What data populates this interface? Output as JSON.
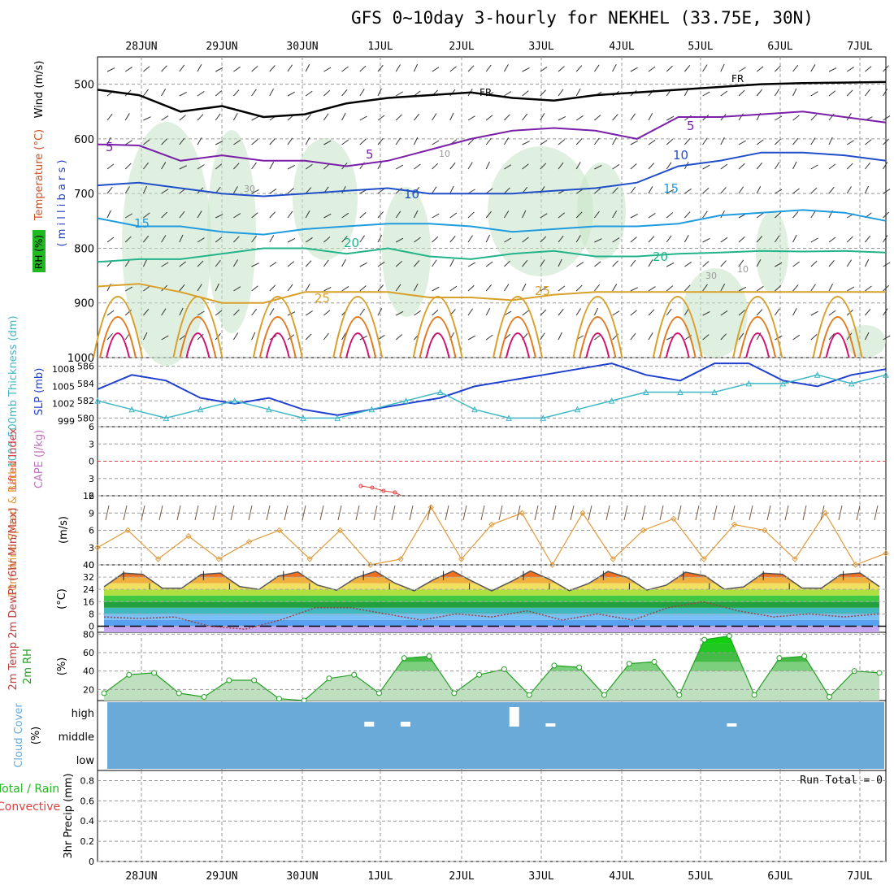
{
  "title": "GFS 0~10day 3-hourly for NEKHEL (33.75E, 30N)",
  "dates": [
    "28JUN",
    "29JUN",
    "30JUN",
    "1JUL",
    "2JUL",
    "3JUL",
    "4JUL",
    "5JUL",
    "6JUL",
    "7JUL"
  ],
  "colors": {
    "temp5": "#7a1fa8",
    "temp10": "#1f4fc8",
    "temp15": "#1f9be0",
    "temp20": "#22b38a",
    "temp25": "#d8a02a",
    "temp30": "#e07a20",
    "temp35": "#d01070",
    "fr": "#000000",
    "rh": "#c7e3c7",
    "slp": "#1f3fcf",
    "thick": "#3fb7c7",
    "wind10": "#e09a3a",
    "cloud": "#6aaad8",
    "rh2m": "#22a022"
  },
  "panels": {
    "upper": {
      "ylabel_wind": "Wind (m/s)",
      "ylabel_temp": "Temperature (°C)",
      "ylabel_rh": "RH (%)",
      "ylabel_units": "( m i l l i b a r s )",
      "yticks": [
        "500",
        "600",
        "700",
        "800",
        "900",
        "1000"
      ],
      "contour_labels": {
        "fr": "FR",
        "c5": "5",
        "c10": "10",
        "c15": "15",
        "c20": "20",
        "c25": "25",
        "rh10": "10",
        "rh30": "30"
      }
    },
    "slp": {
      "ylabel_thick": "1000-500mb Thickness (dm)",
      "ylabel_slp": "SLP (mb)",
      "left_ticks": [
        "586",
        "584",
        "582",
        "580"
      ],
      "right_ticks": [
        "1008",
        "1005",
        "1002",
        "999"
      ]
    },
    "cape": {
      "ylabel_li": "Lifted Index",
      "ylabel_cape": "CAPE (J/kg)",
      "yticks": [
        "-6",
        "-3",
        "0",
        "3",
        "6"
      ]
    },
    "wind10": {
      "ylabel": "10m Wind Speed & Barbs",
      "ylabel_units": "(m/s)",
      "yticks": [
        "12",
        "9",
        "6",
        "3",
        "0"
      ]
    },
    "temp2m": {
      "ylabel": "2m Temp 2m DewPt (6hr Min/Max)",
      "ylabel_units": "(°C)",
      "yticks": [
        "40",
        "32",
        "24",
        "16",
        "8",
        "0"
      ]
    },
    "rh2m": {
      "ylabel": "2m RH",
      "ylabel_units": "(%)",
      "yticks": [
        "80",
        "60",
        "40",
        "20"
      ]
    },
    "cloud": {
      "ylabel": "Cloud Cover",
      "ylabel_units": "(%)",
      "levels": [
        "high",
        "middle",
        "low"
      ]
    },
    "precip": {
      "ylabel_a": "Total / Rain",
      "ylabel_b": "Convective",
      "ylabel_units": "3hr Precip (mm)",
      "yticks": [
        "0.8",
        "0.6",
        "0.4",
        "0.2",
        "0"
      ],
      "run_total": "Run Total = 0"
    }
  },
  "chart_data": {
    "type": "line",
    "x_dates": [
      "28JUN",
      "29JUN",
      "30JUN",
      "1JUL",
      "2JUL",
      "3JUL",
      "4JUL",
      "5JUL",
      "6JUL",
      "7JUL"
    ],
    "upper_isotherms_mb": {
      "FR": [
        510,
        520,
        550,
        540,
        560,
        555,
        535,
        525,
        520,
        515,
        525,
        530,
        520,
        515,
        510,
        505,
        500,
        498,
        497,
        496
      ],
      "5C": [
        610,
        612,
        640,
        630,
        640,
        640,
        650,
        640,
        620,
        600,
        585,
        580,
        585,
        600,
        560,
        560,
        555,
        550,
        560,
        570
      ],
      "10C": [
        685,
        680,
        690,
        700,
        705,
        700,
        695,
        690,
        700,
        700,
        700,
        695,
        690,
        680,
        650,
        640,
        625,
        625,
        630,
        640
      ],
      "15C": [
        745,
        760,
        760,
        770,
        775,
        765,
        760,
        755,
        755,
        760,
        770,
        765,
        760,
        760,
        755,
        740,
        735,
        730,
        735,
        750
      ],
      "20C": [
        825,
        820,
        820,
        810,
        800,
        800,
        810,
        800,
        815,
        820,
        810,
        805,
        815,
        815,
        810,
        808,
        805,
        806,
        805,
        808
      ],
      "25C": [
        870,
        865,
        880,
        900,
        900,
        880,
        880,
        880,
        890,
        890,
        895,
        885,
        880,
        880,
        880,
        880,
        880,
        880,
        880,
        880
      ]
    },
    "slp_mb": [
      1004.5,
      1007,
      1006,
      1003,
      1002,
      1003,
      1001,
      1000,
      1001,
      1002,
      1003,
      1005,
      1006,
      1007,
      1008,
      1009,
      1007,
      1006,
      1009,
      1009,
      1006,
      1005,
      1007,
      1008
    ],
    "thickness_dm": [
      582,
      581,
      580,
      581,
      582,
      581,
      580,
      580,
      581,
      582,
      583,
      581,
      580,
      580,
      581,
      582,
      583,
      583,
      583,
      584,
      584,
      585,
      584,
      585
    ],
    "wind10_ms": [
      3,
      6,
      1,
      5,
      1,
      4,
      6,
      1,
      6,
      0,
      1,
      10,
      1,
      7,
      9,
      0,
      9,
      1,
      6,
      8,
      1,
      7,
      6,
      1,
      9,
      0,
      2
    ],
    "temp2m_c": {
      "max": [
        36,
        34,
        37,
        36,
        38,
        36,
        38,
        36,
        38,
        36,
        38
      ],
      "min": [
        24,
        23,
        24,
        23,
        24,
        24,
        24,
        23,
        24,
        23,
        24
      ],
      "dewpt": [
        6,
        5,
        6,
        0,
        -2,
        4,
        12,
        12,
        8,
        4,
        8,
        6,
        10,
        4,
        8,
        4,
        12,
        16,
        10,
        6,
        8,
        6,
        8
      ]
    },
    "rh2m_pct": [
      16,
      36,
      38,
      16,
      12,
      30,
      30,
      10,
      8,
      32,
      36,
      16,
      54,
      56,
      16,
      36,
      42,
      14,
      46,
      44,
      14,
      48,
      50,
      14,
      74,
      78,
      14,
      54,
      56,
      12,
      40,
      38
    ],
    "cloud_high_flags": [
      0,
      0,
      0,
      0,
      0,
      0,
      0,
      1,
      1,
      0,
      0,
      1,
      1,
      0,
      0,
      0,
      0,
      1,
      0,
      0,
      0
    ],
    "precip_mm": [
      0,
      0,
      0,
      0,
      0,
      0,
      0,
      0,
      0,
      0,
      0,
      0,
      0,
      0,
      0,
      0,
      0,
      0,
      0,
      0
    ],
    "ranges": {
      "pressure_mb": [
        450,
        1000
      ],
      "slp_mb": [
        998,
        1010
      ],
      "thickness_dm": [
        579,
        587
      ],
      "li": [
        -6,
        6
      ],
      "wind_ms": [
        0,
        12
      ],
      "temp_c": [
        -4,
        40
      ],
      "rh_pct": [
        8,
        82
      ],
      "precip_mm": [
        0,
        0.9
      ]
    }
  }
}
